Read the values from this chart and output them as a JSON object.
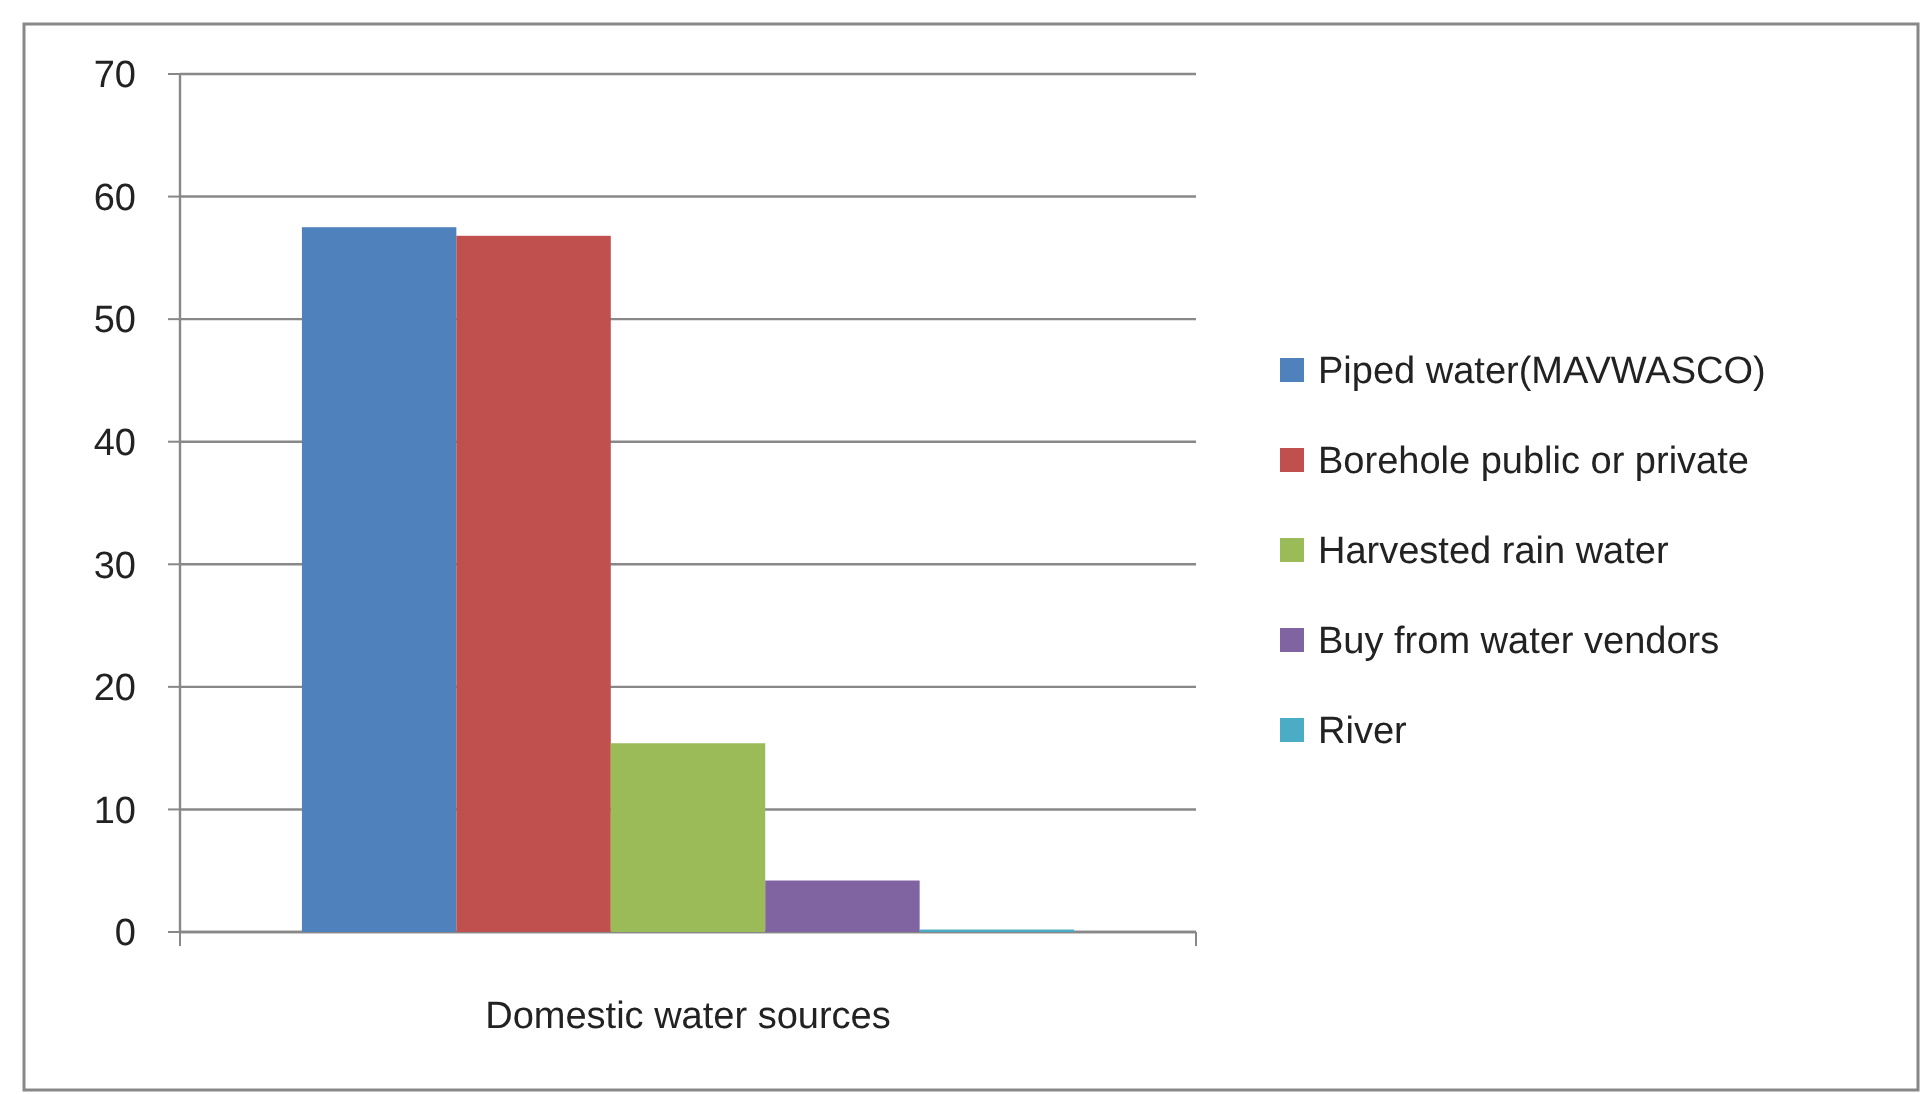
{
  "chart_data": {
    "type": "bar",
    "categories": [
      "Domestic water sources"
    ],
    "series": [
      {
        "name": "Piped water(MAVWASCO)",
        "color": "#4f81bd",
        "values": [
          57.5
        ]
      },
      {
        "name": "Borehole public or private",
        "color": "#c0504d",
        "values": [
          56.8
        ]
      },
      {
        "name": "Harvested rain water",
        "color": "#9bbb59",
        "values": [
          15.4
        ]
      },
      {
        "name": "Buy from water vendors",
        "color": "#8064a2",
        "values": [
          4.2
        ]
      },
      {
        "name": "River",
        "color": "#4bacc6",
        "values": [
          0.2
        ]
      }
    ],
    "ylim": [
      0,
      70
    ],
    "yticks": [
      0,
      10,
      20,
      30,
      40,
      50,
      60,
      70
    ],
    "grid": "y",
    "legend": "right"
  }
}
